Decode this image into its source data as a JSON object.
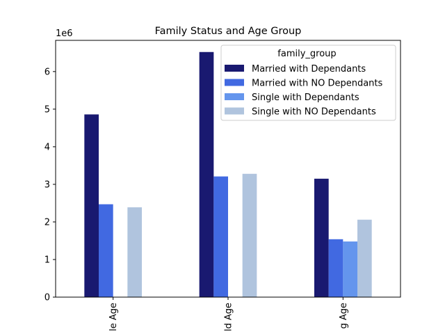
{
  "chart_data": {
    "type": "bar",
    "title": "Family Status and Age Group",
    "xlabel": "",
    "ylabel": "",
    "y_offset_label": "1e6",
    "categories": [
      "Middle Age",
      "Old Age",
      "Young Age"
    ],
    "category_display": [
      "le Age",
      "ld Age",
      "g Age"
    ],
    "ylim": [
      0,
      6.83
    ],
    "yticks": [
      0,
      1,
      2,
      3,
      4,
      5,
      6
    ],
    "y_scale": 1000000,
    "grid": false,
    "legend_position": "top-right",
    "legend_title": "family_group",
    "series": [
      {
        "name": "Married with Dependants",
        "color": "#191970",
        "values": [
          4.86,
          6.52,
          3.15
        ]
      },
      {
        "name": "Married with NO Dependants",
        "color": "#4169e1",
        "values": [
          2.47,
          3.21,
          1.54
        ]
      },
      {
        "name": "Single with Dependants",
        "color": "#6495ed",
        "values": [
          0,
          0,
          1.48
        ]
      },
      {
        "name": "Single with NO Dependants",
        "color": "#b0c4de",
        "values": [
          2.39,
          3.28,
          2.06
        ]
      }
    ]
  }
}
